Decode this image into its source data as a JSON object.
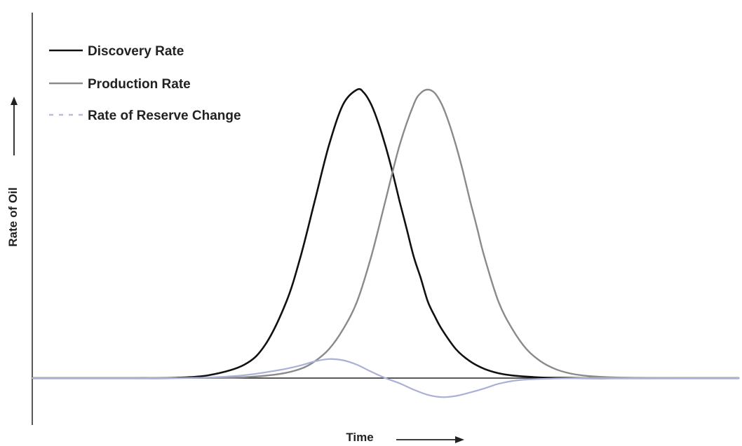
{
  "chart_data": {
    "type": "line",
    "xlabel": "Time",
    "ylabel": "Rate of Oil",
    "xlim": [
      0,
      100
    ],
    "ylim": [
      -0.08,
      1.0
    ],
    "grid": false,
    "legend_position": "top-left",
    "series": [
      {
        "name": "Discovery Rate",
        "color": "#111111",
        "style": "solid",
        "x": [
          0,
          5,
          10,
          15,
          20,
          25,
          30,
          33,
          36,
          38,
          40,
          42,
          44,
          46,
          47,
          48,
          49,
          50,
          51,
          52,
          53,
          54,
          55,
          56,
          57,
          58,
          60,
          62,
          64,
          66,
          68,
          70,
          72,
          75,
          78,
          82,
          86,
          90,
          95,
          100
        ],
        "y": [
          0,
          0,
          0,
          0,
          0.001,
          0.01,
          0.046,
          0.116,
          0.266,
          0.422,
          0.614,
          0.806,
          0.948,
          1.0,
          0.988,
          0.948,
          0.885,
          0.806,
          0.715,
          0.614,
          0.519,
          0.422,
          0.347,
          0.266,
          0.214,
          0.169,
          0.1,
          0.058,
          0.032,
          0.017,
          0.009,
          0.005,
          0.002,
          0.001,
          0,
          0,
          0,
          0,
          0,
          0
        ]
      },
      {
        "name": "Production Rate",
        "color": "#8a8a8a",
        "style": "solid",
        "x": [
          0,
          5,
          10,
          15,
          20,
          25,
          30,
          35,
          38,
          40,
          42,
          44,
          46,
          48,
          50,
          52,
          54,
          55,
          56,
          57,
          58,
          59,
          60,
          61,
          62,
          63,
          64,
          66,
          68,
          70,
          72,
          74,
          76,
          78,
          80,
          83,
          86,
          90,
          95,
          100
        ],
        "y": [
          0,
          0,
          0,
          0,
          0,
          0.001,
          0.003,
          0.014,
          0.032,
          0.058,
          0.1,
          0.169,
          0.266,
          0.422,
          0.614,
          0.806,
          0.948,
          0.988,
          1.0,
          0.988,
          0.948,
          0.885,
          0.806,
          0.715,
          0.614,
          0.519,
          0.422,
          0.266,
          0.169,
          0.1,
          0.058,
          0.032,
          0.017,
          0.009,
          0.005,
          0.002,
          0.001,
          0,
          0,
          0
        ]
      },
      {
        "name": "Rate of Reserve Change",
        "color": "#aab0d8",
        "style": "solid",
        "x": [
          0,
          10,
          20,
          25,
          30,
          35,
          38,
          40,
          42,
          44,
          46,
          48,
          50,
          52,
          54,
          56,
          58,
          60,
          62,
          64,
          66,
          68,
          70,
          75,
          80,
          90,
          100
        ],
        "y": [
          0,
          0,
          0,
          0.002,
          0.01,
          0.028,
          0.044,
          0.058,
          0.066,
          0.062,
          0.046,
          0.022,
          0,
          -0.018,
          -0.04,
          -0.058,
          -0.066,
          -0.062,
          -0.05,
          -0.036,
          -0.02,
          -0.01,
          -0.005,
          -0.001,
          0,
          0,
          0
        ]
      }
    ]
  }
}
